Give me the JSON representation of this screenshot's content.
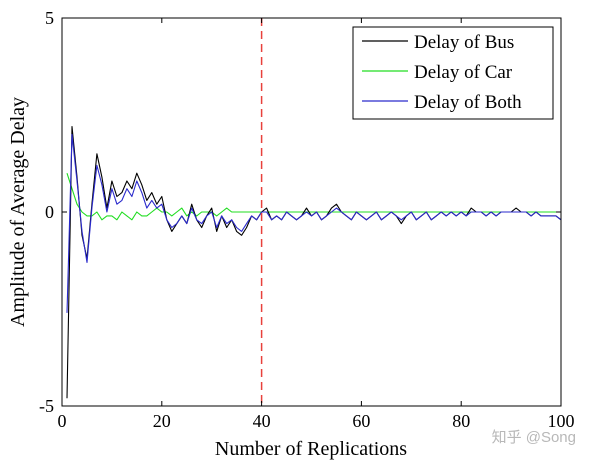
{
  "chart_data": {
    "type": "line",
    "title": "",
    "xlabel": "Number of Replications",
    "ylabel": "Amplitude of Average Delay",
    "xlim": [
      0,
      100
    ],
    "ylim": [
      -5,
      5
    ],
    "xticks": [
      0,
      20,
      40,
      60,
      80,
      100
    ],
    "yticks": [
      -5,
      0,
      5
    ],
    "xtick_labels": [
      "0",
      "20",
      "40",
      "60",
      "80",
      "100"
    ],
    "ytick_labels": [
      "-5",
      "0",
      "5"
    ],
    "grid": false,
    "legend_position": "top-right",
    "reference_line": {
      "x": 40,
      "color": "#e8413c",
      "style": "dashed"
    },
    "x": [
      1,
      2,
      3,
      4,
      5,
      6,
      7,
      8,
      9,
      10,
      11,
      12,
      13,
      14,
      15,
      16,
      17,
      18,
      19,
      20,
      21,
      22,
      23,
      24,
      25,
      26,
      27,
      28,
      29,
      30,
      31,
      32,
      33,
      34,
      35,
      36,
      37,
      38,
      39,
      40,
      41,
      42,
      43,
      44,
      45,
      46,
      47,
      48,
      49,
      50,
      51,
      52,
      53,
      54,
      55,
      56,
      57,
      58,
      59,
      60,
      61,
      62,
      63,
      64,
      65,
      66,
      67,
      68,
      69,
      70,
      71,
      72,
      73,
      74,
      75,
      76,
      77,
      78,
      79,
      80,
      81,
      82,
      83,
      84,
      85,
      86,
      87,
      88,
      89,
      90,
      91,
      92,
      93,
      94,
      95,
      96,
      97,
      98,
      99,
      100
    ],
    "series": [
      {
        "name": "Delay of Bus",
        "color": "#000000",
        "values": [
          -4.8,
          2.2,
          0.9,
          -0.6,
          -1.2,
          0.2,
          1.5,
          0.9,
          0.1,
          0.8,
          0.4,
          0.5,
          0.8,
          0.6,
          1.0,
          0.7,
          0.3,
          0.5,
          0.2,
          0.4,
          -0.2,
          -0.5,
          -0.3,
          -0.1,
          -0.3,
          0.2,
          -0.2,
          -0.4,
          -0.1,
          0.1,
          -0.5,
          -0.1,
          -0.4,
          -0.2,
          -0.5,
          -0.6,
          -0.4,
          -0.1,
          -0.2,
          0.0,
          0.1,
          -0.2,
          -0.1,
          -0.2,
          0.0,
          -0.1,
          -0.2,
          -0.1,
          0.1,
          -0.1,
          0.0,
          -0.2,
          -0.1,
          0.1,
          0.2,
          0.0,
          -0.1,
          -0.2,
          0.0,
          -0.1,
          -0.2,
          -0.1,
          0.0,
          -0.2,
          -0.1,
          0.0,
          -0.1,
          -0.3,
          -0.1,
          0.0,
          -0.2,
          -0.1,
          0.0,
          -0.2,
          -0.1,
          0.0,
          -0.1,
          0.0,
          -0.1,
          0.0,
          -0.1,
          0.1,
          0.0,
          0.0,
          -0.1,
          0.0,
          -0.1,
          0.0,
          0.0,
          0.0,
          0.1,
          0.0,
          0.0,
          -0.1,
          0.0,
          -0.1,
          -0.1,
          -0.1,
          -0.1,
          -0.2
        ]
      },
      {
        "name": "Delay of Car",
        "color": "#22dd22",
        "values": [
          1.0,
          0.6,
          0.2,
          0.0,
          -0.1,
          -0.1,
          0.0,
          -0.2,
          -0.1,
          -0.1,
          -0.2,
          0.0,
          -0.1,
          -0.2,
          0.0,
          -0.1,
          -0.1,
          0.0,
          0.1,
          0.0,
          0.0,
          -0.1,
          0.0,
          0.1,
          -0.1,
          0.0,
          -0.1,
          0.0,
          0.0,
          0.0,
          -0.1,
          0.0,
          0.1,
          0.0,
          0.0,
          0.0,
          0.0,
          0.0,
          0.0,
          0.0,
          0.0,
          0.0,
          0.0,
          0.0,
          0.0,
          0.0,
          0.0,
          0.0,
          0.0,
          0.0,
          0.0,
          0.0,
          0.0,
          0.0,
          0.0,
          0.0,
          0.0,
          0.0,
          0.0,
          0.0,
          0.0,
          0.0,
          0.0,
          0.0,
          0.0,
          0.0,
          0.0,
          0.0,
          0.0,
          0.0,
          0.0,
          0.0,
          0.0,
          0.0,
          0.0,
          0.0,
          0.0,
          0.0,
          0.0,
          0.0,
          0.0,
          0.0,
          0.0,
          0.0,
          0.0,
          0.0,
          0.0,
          0.0,
          0.0,
          0.0,
          0.0,
          0.0,
          0.0,
          0.0,
          0.0,
          0.0,
          0.0,
          0.0,
          0.0,
          0.0
        ]
      },
      {
        "name": "Delay of Both",
        "color": "#2a2acc",
        "values": [
          -2.6,
          2.0,
          0.8,
          -0.5,
          -1.3,
          0.1,
          1.2,
          0.7,
          0.0,
          0.6,
          0.2,
          0.3,
          0.6,
          0.4,
          0.8,
          0.5,
          0.1,
          0.3,
          0.1,
          0.2,
          -0.2,
          -0.4,
          -0.3,
          -0.1,
          -0.3,
          0.1,
          -0.2,
          -0.3,
          -0.1,
          0.0,
          -0.4,
          -0.1,
          -0.3,
          -0.2,
          -0.4,
          -0.5,
          -0.3,
          -0.1,
          -0.2,
          0.0,
          0.0,
          -0.2,
          -0.1,
          -0.2,
          0.0,
          -0.1,
          -0.2,
          -0.1,
          0.0,
          -0.1,
          0.0,
          -0.2,
          -0.1,
          0.0,
          0.1,
          0.0,
          -0.1,
          -0.2,
          0.0,
          -0.1,
          -0.2,
          -0.1,
          0.0,
          -0.2,
          -0.1,
          0.0,
          -0.1,
          -0.2,
          -0.1,
          0.0,
          -0.2,
          -0.1,
          0.0,
          -0.2,
          -0.1,
          0.0,
          -0.1,
          0.0,
          -0.1,
          0.0,
          -0.1,
          0.0,
          0.0,
          0.0,
          -0.1,
          0.0,
          -0.1,
          0.0,
          0.0,
          0.0,
          0.0,
          0.0,
          0.0,
          -0.1,
          0.0,
          -0.1,
          -0.1,
          -0.1,
          -0.1,
          -0.2
        ]
      }
    ]
  },
  "watermark": "知乎 @Song"
}
